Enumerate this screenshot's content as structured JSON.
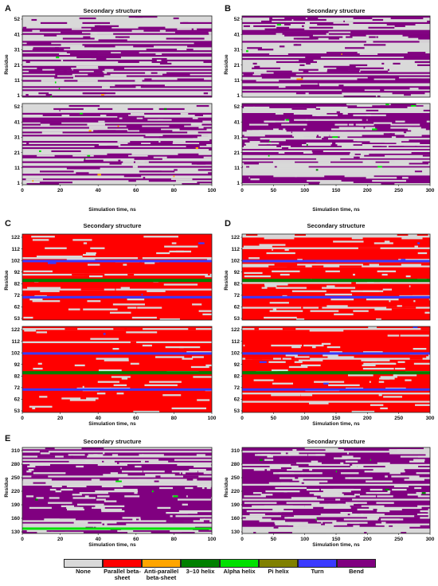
{
  "colors": {
    "none": "#d9d9d9",
    "parallel": "#ff0000",
    "antiparallel": "#ffa500",
    "helix310": "#008000",
    "alpha": "#00e000",
    "pi": "#808000",
    "turn": "#3a3aff",
    "bend": "#800080"
  },
  "legend": [
    {
      "key": "none",
      "label": "None"
    },
    {
      "key": "parallel",
      "label": "Parallel beta-sheet"
    },
    {
      "key": "antiparallel",
      "label": "Anti-parallel beta-sheet"
    },
    {
      "key": "helix310",
      "label": "3–10 helix"
    },
    {
      "key": "alpha",
      "label": "Alpha helix"
    },
    {
      "key": "pi",
      "label": "Pi helix"
    },
    {
      "key": "turn",
      "label": "Turn"
    },
    {
      "key": "bend",
      "label": "Bend"
    }
  ],
  "chart_data": [
    {
      "type": "heatmap",
      "panel_label": "A",
      "title": "Secondary structure",
      "xlabel": "Simulation time, ns",
      "ylabel": "Residue",
      "xlim": [
        0,
        100
      ],
      "x_ticks": [
        "0",
        "20",
        "40",
        "60",
        "80",
        "100"
      ],
      "subplots": [
        {
          "y_ticks": [
            "52",
            "41",
            "31",
            "21",
            "11",
            "1"
          ],
          "dominant_state": "none",
          "secondary_state": "bend"
        },
        {
          "y_ticks": [
            "52",
            "41",
            "31",
            "21",
            "11",
            "1"
          ],
          "dominant_state": "none",
          "secondary_state": "bend"
        }
      ]
    },
    {
      "type": "heatmap",
      "panel_label": "B",
      "title": "Secondary structure",
      "xlabel": "Simulation time, ns",
      "ylabel": "Residue",
      "xlim": [
        0,
        300
      ],
      "x_ticks": [
        "0",
        "50",
        "100",
        "150",
        "200",
        "250",
        "300"
      ],
      "subplots": [
        {
          "y_ticks": [
            "52",
            "41",
            "31",
            "21",
            "11",
            "1"
          ],
          "dominant_state": "none",
          "secondary_state": "bend"
        },
        {
          "y_ticks": [
            "52",
            "41",
            "31",
            "21",
            "11",
            "1"
          ],
          "dominant_state": "bend",
          "secondary_state": "none"
        }
      ]
    },
    {
      "type": "heatmap",
      "panel_label": "C",
      "title": "Secondary structure",
      "xlabel": "Simulation time, ns",
      "ylabel": "Residue",
      "xlim": [
        0,
        100
      ],
      "x_ticks": [
        "0",
        "20",
        "40",
        "60",
        "80",
        "100"
      ],
      "subplots": [
        {
          "y_ticks": [
            "122",
            "112",
            "102",
            "92",
            "82",
            "72",
            "62",
            "53"
          ],
          "dominant_state": "parallel",
          "secondary_state": "turn"
        },
        {
          "y_ticks": [
            "122",
            "112",
            "102",
            "92",
            "82",
            "72",
            "62",
            "53"
          ],
          "dominant_state": "parallel",
          "secondary_state": "turn"
        }
      ]
    },
    {
      "type": "heatmap",
      "panel_label": "D",
      "title": "Secondary structure",
      "xlabel": "Simulation time, ns",
      "ylabel": "Residue",
      "xlim": [
        0,
        300
      ],
      "x_ticks": [
        "0",
        "50",
        "100",
        "150",
        "200",
        "250",
        "300"
      ],
      "subplots": [
        {
          "y_ticks": [
            "122",
            "112",
            "102",
            "92",
            "82",
            "72",
            "62",
            "53"
          ],
          "dominant_state": "parallel",
          "secondary_state": "turn"
        },
        {
          "y_ticks": [
            "122",
            "112",
            "102",
            "92",
            "82",
            "72",
            "62",
            "53"
          ],
          "dominant_state": "parallel",
          "secondary_state": "turn"
        }
      ]
    },
    {
      "type": "heatmap",
      "panel_label": "E",
      "title": "Secondary structure",
      "xlabel": "Simulation time, ns",
      "ylabel": "Residue",
      "xlim": [
        0,
        100
      ],
      "x_ticks": [
        "0",
        "20",
        "40",
        "60",
        "80",
        "100"
      ],
      "subplots": [
        {
          "y_ticks": [
            "310",
            "280",
            "250",
            "220",
            "190",
            "160",
            "130"
          ],
          "dominant_state": "bend",
          "secondary_state": "none"
        }
      ]
    },
    {
      "type": "heatmap",
      "panel_label": "",
      "title": "Secondary structure",
      "xlabel": "Simulation time, ns",
      "ylabel": "Residue",
      "xlim": [
        0,
        300
      ],
      "x_ticks": [
        "0",
        "50",
        "100",
        "150",
        "200",
        "250",
        "300"
      ],
      "subplots": [
        {
          "y_ticks": [
            "310",
            "280",
            "250",
            "220",
            "190",
            "160",
            "130"
          ],
          "dominant_state": "bend",
          "secondary_state": "none"
        }
      ]
    }
  ]
}
